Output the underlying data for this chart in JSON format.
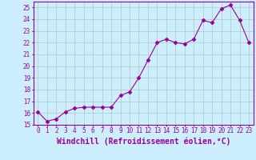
{
  "x": [
    0,
    1,
    2,
    3,
    4,
    5,
    6,
    7,
    8,
    9,
    10,
    11,
    12,
    13,
    14,
    15,
    16,
    17,
    18,
    19,
    20,
    21,
    22,
    23
  ],
  "y": [
    16.1,
    15.3,
    15.5,
    16.1,
    16.4,
    16.5,
    16.5,
    16.5,
    16.5,
    17.5,
    17.8,
    19.0,
    20.5,
    22.0,
    22.3,
    22.0,
    21.9,
    22.3,
    23.9,
    23.7,
    24.9,
    25.2,
    23.9,
    22.0
  ],
  "line_color": "#990099",
  "marker": "D",
  "marker_size": 2.5,
  "bg_color": "#cceeff",
  "grid_color": "#aaccbb",
  "xlabel": "Windchill (Refroidissement éolien,°C)",
  "ylabel": "",
  "ylim": [
    15,
    25.5
  ],
  "xlim": [
    -0.5,
    23.5
  ],
  "yticks": [
    15,
    16,
    17,
    18,
    19,
    20,
    21,
    22,
    23,
    24,
    25
  ],
  "xticks": [
    0,
    1,
    2,
    3,
    4,
    5,
    6,
    7,
    8,
    9,
    10,
    11,
    12,
    13,
    14,
    15,
    16,
    17,
    18,
    19,
    20,
    21,
    22,
    23
  ],
  "tick_fontsize": 5.5,
  "xlabel_fontsize": 7.0,
  "spine_color": "#990099"
}
